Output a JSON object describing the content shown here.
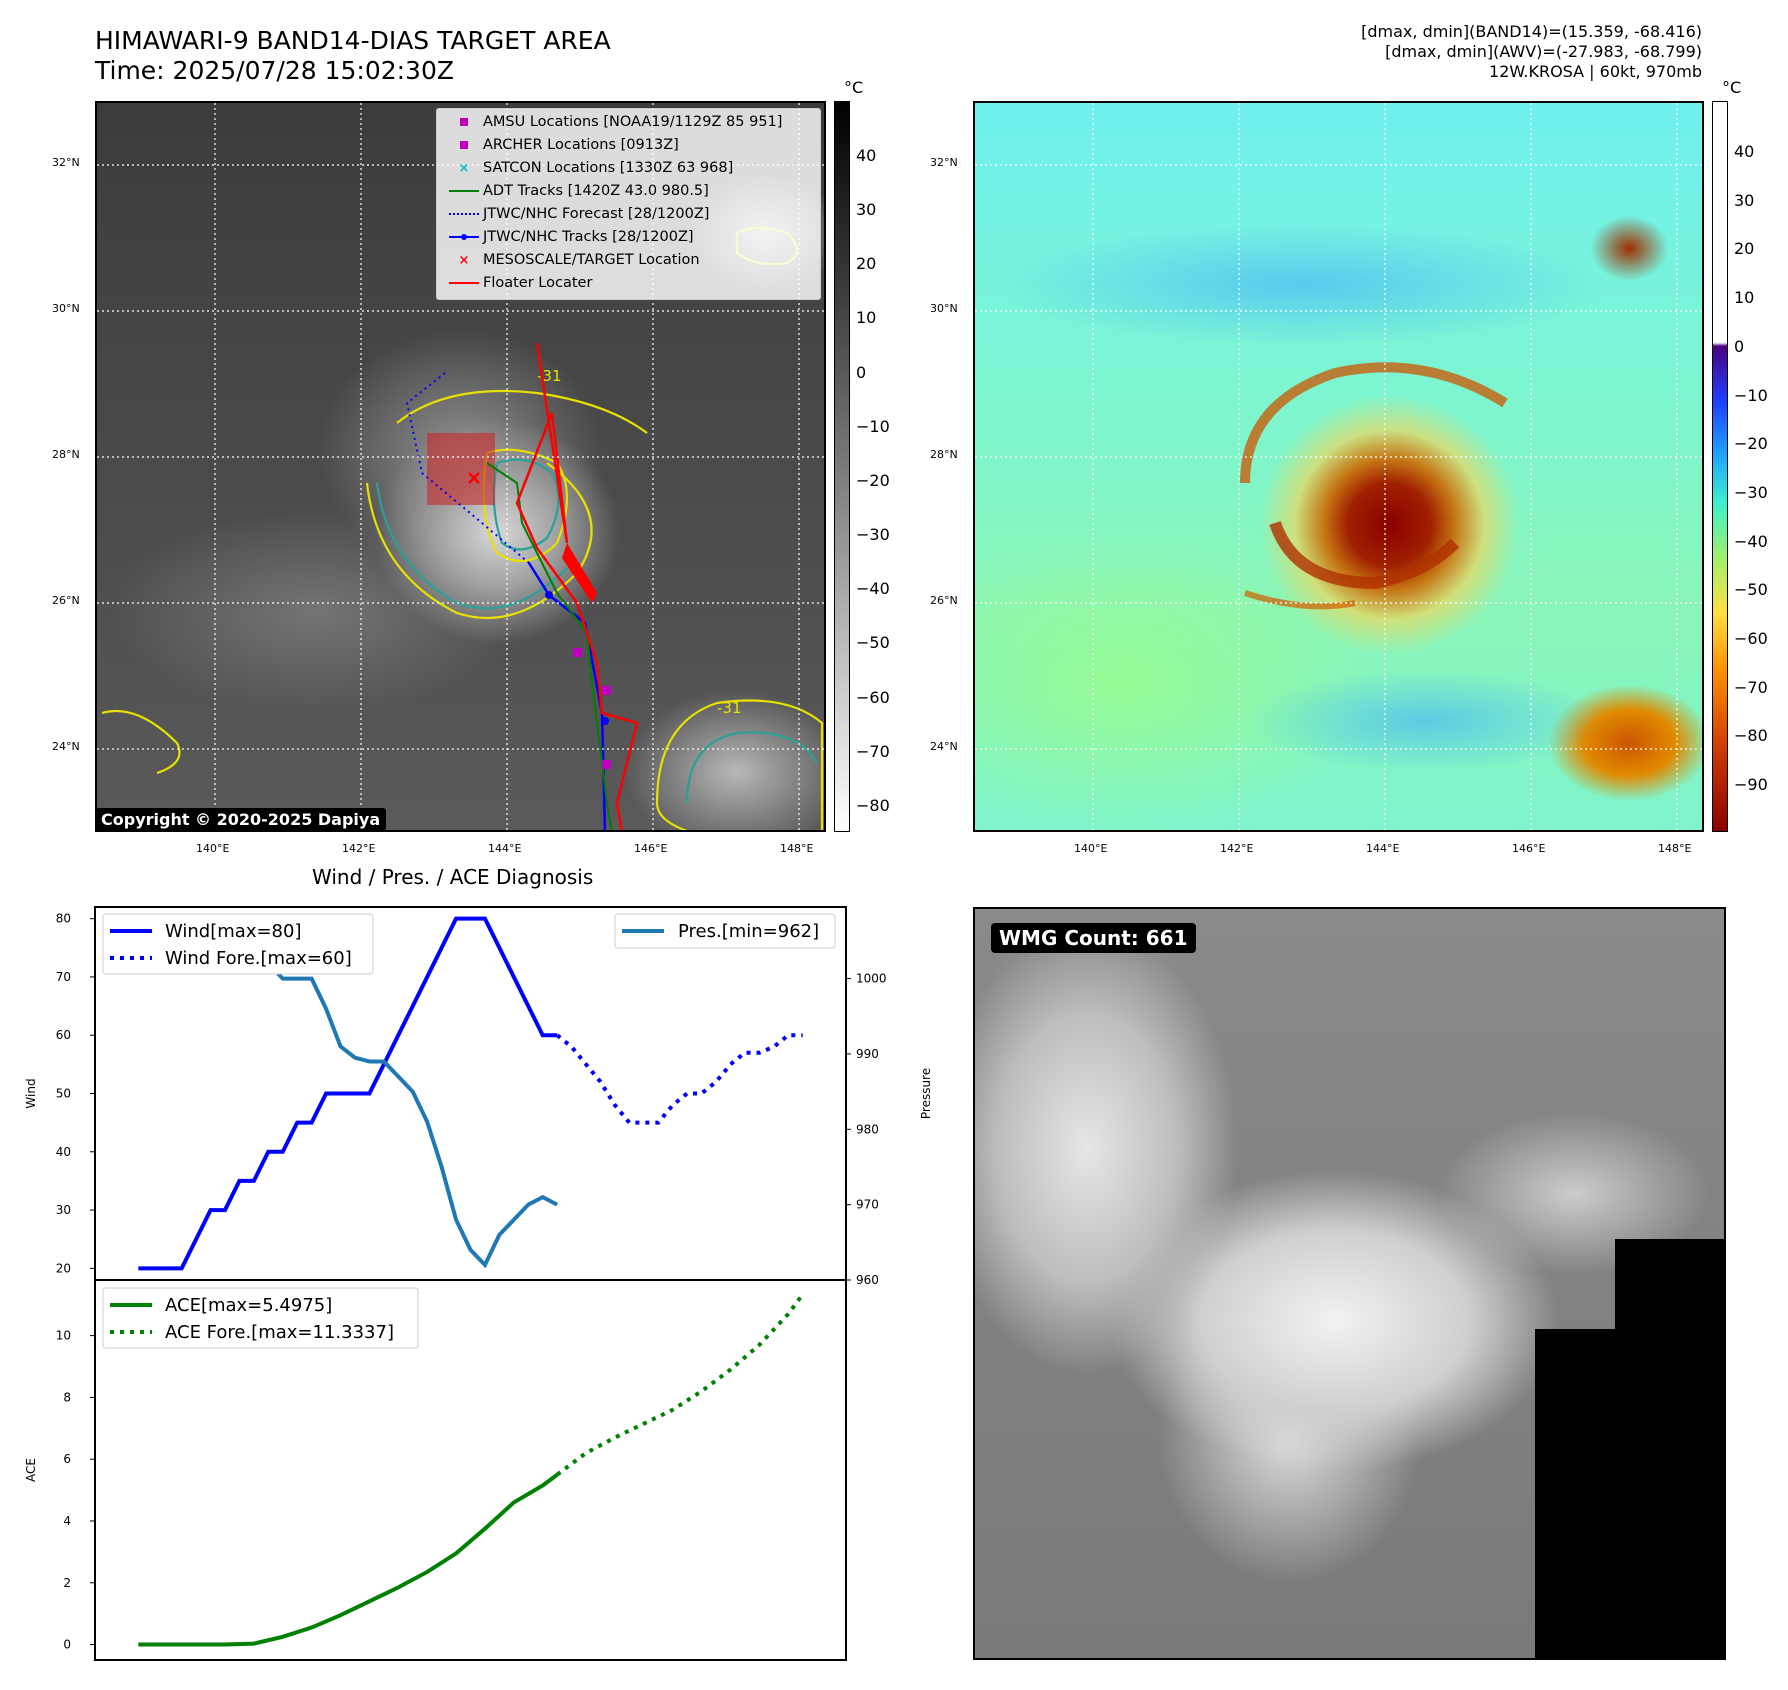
{
  "header": {
    "title_line1": "HIMAWARI-9 BAND14-DIAS TARGET AREA",
    "title_line2": "Time: 2025/07/28 15:02:30Z",
    "info_line1": "[dmax, dmin](BAND14)=(15.359, -68.416)",
    "info_line2": "[dmax, dmin](AWV)=(-27.983, -68.799)",
    "info_line3": "12W.KROSA | 60kt, 970mb"
  },
  "maps": {
    "lat_labels": [
      "32°N",
      "30°N",
      "28°N",
      "26°N",
      "24°N"
    ],
    "lon_labels": [
      "140°E",
      "142°E",
      "144°E",
      "146°E",
      "148°E"
    ],
    "copyright": "Copyright © 2020-2025 Dapiya",
    "legend": [
      {
        "label": "AMSU Locations [NOAA19/1129Z 85 951]",
        "color": "#c000c0",
        "symbol": "square"
      },
      {
        "label": "ARCHER Locations [0913Z]",
        "color": "#c000c0",
        "symbol": "square"
      },
      {
        "label": "SATCON Locations [1330Z 63 968]",
        "color": "#00c0c0",
        "symbol": "x"
      },
      {
        "label": "ADT Tracks [1420Z 43.0 980.5]",
        "color": "#008000",
        "symbol": "line"
      },
      {
        "label": "JTWC/NHC Forecast [28/1200Z]",
        "color": "#0000ff",
        "symbol": "dotted"
      },
      {
        "label": "JTWC/NHC Tracks [28/1200Z]",
        "color": "#0000ff",
        "symbol": "line-dot"
      },
      {
        "label": "MESOSCALE/TARGET Location",
        "color": "#ff0000",
        "symbol": "x"
      },
      {
        "label": "Floater Locater",
        "color": "#ff0000",
        "symbol": "line"
      }
    ],
    "cbar_left": {
      "unit": "°C",
      "ticks": [
        "40",
        "30",
        "20",
        "10",
        "0",
        "−10",
        "−20",
        "−30",
        "−40",
        "−50",
        "−60",
        "−70",
        "−80"
      ]
    },
    "cbar_right": {
      "unit": "°C",
      "ticks": [
        "40",
        "30",
        "20",
        "10",
        "0",
        "−10",
        "−20",
        "−30",
        "−40",
        "−50",
        "−60",
        "−70",
        "−80",
        "−90"
      ]
    },
    "contour_label": "-31"
  },
  "wmg": {
    "label": "WMG Count: 661"
  },
  "chart_data": [
    {
      "type": "line",
      "title": "Wind / Pres. / ACE Diagnosis",
      "ylabel": "Wind",
      "ylabel_right": "Pressure",
      "ylim": [
        18,
        82
      ],
      "ylim_right": [
        960,
        1009.5
      ],
      "yticks": [
        20,
        30,
        40,
        50,
        60,
        70,
        80
      ],
      "yticks_right": [
        960,
        970,
        980,
        990,
        1000
      ],
      "x": [
        0,
        1,
        2,
        3,
        4,
        5,
        6,
        7,
        8,
        9,
        10,
        11,
        12,
        13,
        14,
        15,
        16,
        17,
        18,
        19,
        20,
        21,
        22,
        23,
        24,
        25,
        26,
        27,
        28,
        29,
        30,
        31,
        32,
        33,
        34,
        35,
        36,
        37,
        38,
        39,
        40,
        41,
        42,
        43,
        44,
        45,
        46
      ],
      "series": [
        {
          "name": "Wind[max=80]",
          "color": "#0000ff",
          "style": "solid",
          "x": [
            0,
            1,
            2,
            3,
            4,
            5,
            6,
            7,
            8,
            9,
            10,
            11,
            12,
            13,
            14,
            15,
            16,
            17,
            18,
            19,
            20,
            21,
            22,
            23,
            24,
            25,
            26,
            27,
            28,
            29
          ],
          "values": [
            20,
            20,
            20,
            20,
            25,
            30,
            30,
            35,
            35,
            40,
            40,
            45,
            45,
            50,
            50,
            50,
            50,
            55,
            60,
            65,
            70,
            75,
            80,
            80,
            80,
            75,
            70,
            65,
            60,
            60
          ]
        },
        {
          "name": "Wind Fore.[max=60]",
          "color": "#0000ff",
          "style": "dotted",
          "x": [
            29,
            30,
            31,
            32,
            33,
            34,
            35,
            36,
            37,
            38,
            39,
            40,
            41,
            42,
            43,
            44,
            45,
            46
          ],
          "values": [
            60,
            58,
            55,
            52,
            48,
            45,
            45,
            45,
            48,
            50,
            50,
            52,
            55,
            57,
            57,
            58,
            60,
            60
          ]
        },
        {
          "name": "Pres.[min=962]",
          "color": "#1f77b4",
          "style": "solid",
          "axis": "right",
          "x": [
            0,
            1,
            2,
            3,
            4,
            5,
            6,
            7,
            8,
            9,
            10,
            11,
            12,
            13,
            14,
            15,
            16,
            17,
            18,
            19,
            20,
            21,
            22,
            23,
            24,
            25,
            26,
            27,
            28,
            29
          ],
          "values": [
            1007,
            1007,
            1007,
            1007,
            1005,
            1005,
            1004,
            1004,
            1002,
            1002,
            1000,
            1000,
            1000,
            996,
            991,
            989.5,
            989,
            989,
            987,
            985,
            981,
            975,
            968,
            964,
            962,
            966,
            968,
            970,
            971,
            970
          ]
        }
      ]
    },
    {
      "type": "line",
      "ylabel": "ACE",
      "ylim": [
        -0.5,
        11.8
      ],
      "yticks": [
        0,
        2,
        4,
        6,
        8,
        10
      ],
      "series": [
        {
          "name": "ACE[max=5.4975]",
          "color": "#008000",
          "style": "solid",
          "x": [
            0,
            2,
            4,
            6,
            8,
            10,
            12,
            14,
            16,
            18,
            20,
            22,
            24,
            26,
            28,
            29
          ],
          "values": [
            0,
            0,
            0,
            0,
            0.03,
            0.25,
            0.55,
            0.95,
            1.4,
            1.85,
            2.35,
            2.95,
            3.75,
            4.6,
            5.15,
            5.4975
          ]
        },
        {
          "name": "ACE Fore.[max=11.3337]",
          "color": "#008000",
          "style": "dotted",
          "x": [
            29,
            31,
            33,
            35,
            37,
            39,
            41,
            43,
            45,
            46
          ],
          "values": [
            5.5,
            6.2,
            6.7,
            7.15,
            7.6,
            8.2,
            8.9,
            9.7,
            10.7,
            11.3337
          ]
        }
      ]
    }
  ]
}
